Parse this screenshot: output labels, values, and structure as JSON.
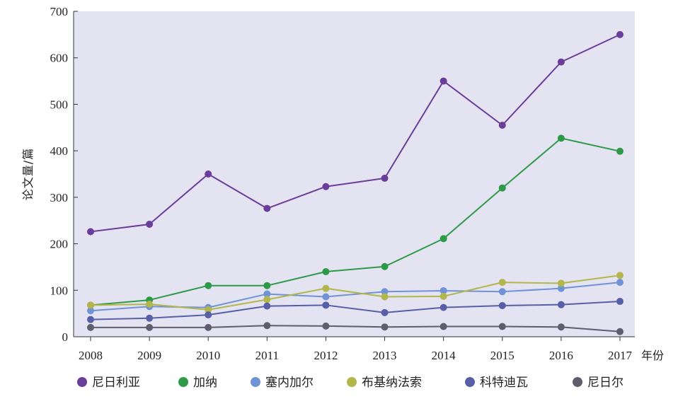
{
  "chart_data": {
    "type": "line",
    "title": "",
    "xlabel": "年份",
    "ylabel": "论文量/篇",
    "x": [
      2008,
      2009,
      2010,
      2011,
      2012,
      2013,
      2014,
      2015,
      2016,
      2017
    ],
    "xticks": [
      "2008",
      "2009",
      "2010",
      "2011",
      "2012",
      "2013",
      "2014",
      "2015",
      "2016",
      "2017"
    ],
    "yticks": [
      "0",
      "100",
      "200",
      "300",
      "400",
      "500",
      "600",
      "700"
    ],
    "ylim": [
      0,
      700
    ],
    "grid": false,
    "legend_position": "bottom",
    "background_color": "#e3e3f1",
    "series": [
      {
        "name": "尼日利亚",
        "color": "#6a3d9a",
        "values": [
          226,
          242,
          350,
          276,
          323,
          341,
          550,
          455,
          591,
          650
        ]
      },
      {
        "name": "加纳",
        "color": "#2e9a48",
        "values": [
          68,
          79,
          110,
          110,
          140,
          151,
          211,
          320,
          427,
          399
        ]
      },
      {
        "name": "塞内加尔",
        "color": "#6f93d6",
        "values": [
          56,
          65,
          63,
          92,
          86,
          97,
          99,
          97,
          104,
          117
        ]
      },
      {
        "name": "布基纳法索",
        "color": "#b3b64a",
        "values": [
          68,
          70,
          58,
          80,
          104,
          86,
          87,
          117,
          115,
          132
        ]
      },
      {
        "name": "科特迪瓦",
        "color": "#5760a6",
        "values": [
          37,
          40,
          47,
          66,
          68,
          52,
          63,
          67,
          69,
          76
        ]
      },
      {
        "name": "尼日尔",
        "color": "#5e5e6e",
        "values": [
          20,
          20,
          20,
          24,
          23,
          21,
          22,
          22,
          21,
          11
        ]
      }
    ]
  }
}
